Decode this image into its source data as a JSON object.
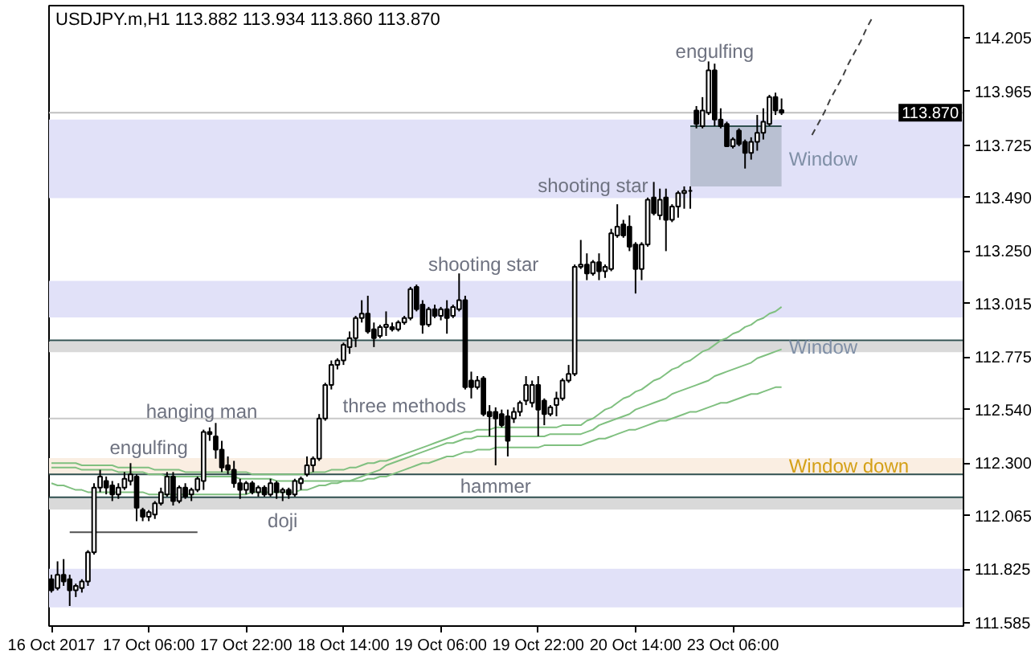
{
  "chart_data": {
    "type": "candlestick",
    "title": "USDJPY.m,H1 113.882 113.934 113.860 113.870",
    "categories": [
      "16 Oct 2017",
      null,
      null,
      null,
      null,
      null,
      null,
      null,
      null,
      null,
      null,
      null,
      null,
      null,
      null,
      null,
      "17 Oct 06:00",
      null,
      null,
      null,
      null,
      null,
      null,
      null,
      null,
      null,
      null,
      null,
      null,
      null,
      null,
      null,
      "17 Oct 22:00",
      null,
      null,
      null,
      null,
      null,
      null,
      null,
      null,
      null,
      null,
      null,
      null,
      null,
      null,
      null,
      "18 Oct 14:00",
      null,
      null,
      null,
      null,
      null,
      null,
      null,
      null,
      null,
      null,
      null,
      null,
      null,
      null,
      null,
      "19 Oct 06:00",
      null,
      null,
      null,
      null,
      null,
      null,
      null,
      null,
      null,
      null,
      null,
      null,
      null,
      null,
      null,
      "19 Oct 22:00",
      null,
      null,
      null,
      null,
      null,
      null,
      null,
      null,
      null,
      null,
      null,
      null,
      null,
      null,
      null,
      "20 Oct 14:00",
      null,
      null,
      null,
      null,
      null,
      null,
      null,
      null,
      null,
      null,
      null,
      null,
      null,
      null,
      null,
      "23 Oct 06:00",
      null,
      null,
      null,
      null,
      null,
      null,
      null,
      null,
      null,
      null,
      null,
      null,
      null,
      null,
      null,
      null,
      null,
      null,
      null,
      null,
      null,
      null,
      null,
      null,
      null,
      null,
      null,
      null,
      null,
      null,
      null,
      null,
      null,
      null,
      null,
      null,
      null
    ],
    "ylim": [
      111.57,
      114.35
    ],
    "yticks": [
      111.585,
      111.825,
      112.065,
      {
        "value": 112.3,
        "label": "112.300"
      },
      {
        "value": 112.54,
        "label": "112.540"
      },
      112.775,
      113.015,
      {
        "value": 113.25,
        "label": "113.250"
      },
      {
        "value": 113.49,
        "label": "113.490"
      },
      113.725,
      113.965,
      114.205
    ],
    "bands": [
      {
        "axis": "y",
        "from": 113.488,
        "to": 113.84,
        "color": "#e1e1f8",
        "label": "Window"
      },
      {
        "axis": "y",
        "from": 112.953,
        "to": 113.117,
        "color": "#e1e1f8"
      },
      {
        "axis": "y",
        "from": 112.797,
        "to": 112.845,
        "color": "#d9d9d9",
        "label": "Window"
      },
      {
        "axis": "y",
        "from": 112.251,
        "to": 112.323,
        "color": "#faeee2",
        "label": "Window down"
      },
      {
        "axis": "y",
        "from": 112.092,
        "to": 112.147,
        "color": "#d9d9d9"
      },
      {
        "axis": "y",
        "from": 111.654,
        "to": 111.827,
        "color": "#e1e1f8"
      }
    ],
    "ref_lines": [
      {
        "axis": "y",
        "value": 113.87,
        "label": "113.870",
        "color": "#c0c0c0"
      },
      {
        "axis": "y",
        "value": 112.85,
        "color": "#2f4f4f"
      },
      {
        "axis": "y",
        "value": 112.5,
        "color": "#c8c8c8"
      },
      {
        "axis": "y",
        "value": 112.25,
        "color": "#2f4f4f"
      },
      {
        "axis": "y",
        "value": 112.147,
        "color": "#2f4f4f"
      }
    ],
    "annotations": [
      "engulfing",
      "shooting star",
      "shooting star",
      "hanging man",
      "engulfing",
      "three methods",
      "doji",
      "hammer"
    ],
    "series": [
      {
        "type": "line",
        "color": "#80c080",
        "values": [
          112.3,
          112.3,
          112.3,
          112.3,
          112.3,
          112.29,
          112.29,
          112.29,
          112.29,
          112.29,
          112.29,
          112.28,
          112.28,
          112.28,
          112.28,
          112.28,
          112.28,
          112.27,
          112.27,
          112.27,
          112.27,
          112.27,
          112.26,
          112.26,
          112.26,
          112.26,
          112.26,
          112.26,
          112.26,
          112.26,
          112.26,
          112.26,
          112.26,
          112.25,
          112.25,
          112.25,
          112.25,
          112.25,
          112.25,
          112.25,
          112.25,
          112.25,
          112.25,
          112.26,
          112.26,
          112.26,
          112.27,
          112.27,
          112.27,
          112.28,
          112.28,
          112.29,
          112.3,
          112.3,
          112.31,
          112.31,
          112.32,
          112.33,
          112.34,
          112.35,
          112.36,
          112.37,
          112.38,
          112.39,
          112.4,
          112.41,
          112.42,
          112.43,
          112.44,
          112.44,
          112.45,
          112.45,
          112.45,
          112.46,
          112.46,
          112.46,
          112.46,
          112.46,
          112.46,
          112.46,
          112.46,
          112.46,
          112.46,
          112.46,
          112.47,
          112.47,
          112.47,
          112.47,
          112.49,
          112.5,
          112.52,
          112.54,
          112.55,
          112.57,
          112.59,
          112.6,
          112.62,
          112.63,
          112.65,
          112.67,
          112.68,
          112.7,
          112.72,
          112.73,
          112.75,
          112.76,
          112.78,
          112.8,
          112.81,
          112.83,
          112.85,
          112.86,
          112.88,
          112.89,
          112.91,
          112.92,
          112.94,
          112.95,
          112.97,
          112.98,
          113.0,
          null,
          null,
          null,
          null,
          null,
          null,
          null,
          null,
          null,
          null,
          null,
          null,
          null,
          null,
          null,
          null,
          null,
          null,
          null,
          null,
          null,
          null,
          null,
          null,
          null,
          null,
          null,
          null,
          null
        ]
      },
      {
        "type": "line",
        "color": "#80c080",
        "values": [
          112.21,
          112.2,
          112.2,
          112.19,
          112.18,
          112.18,
          112.17,
          112.17,
          112.17,
          112.17,
          112.17,
          112.17,
          112.17,
          112.17,
          112.17,
          112.17,
          112.16,
          112.16,
          112.16,
          112.16,
          112.16,
          112.16,
          112.16,
          112.16,
          112.16,
          112.16,
          112.16,
          112.16,
          112.16,
          112.16,
          112.16,
          112.16,
          112.16,
          112.17,
          112.17,
          112.17,
          112.17,
          112.17,
          112.17,
          112.17,
          112.17,
          112.18,
          112.18,
          112.19,
          112.2,
          112.2,
          112.21,
          112.21,
          112.22,
          112.22,
          112.23,
          112.24,
          112.25,
          112.26,
          112.27,
          112.29,
          112.3,
          112.31,
          112.32,
          112.33,
          112.34,
          112.35,
          112.36,
          112.37,
          112.38,
          112.39,
          112.39,
          112.4,
          112.41,
          112.41,
          112.42,
          112.42,
          112.42,
          112.42,
          112.42,
          112.42,
          112.42,
          112.42,
          112.42,
          112.42,
          112.42,
          112.42,
          112.43,
          112.43,
          112.43,
          112.43,
          112.43,
          112.43,
          112.44,
          112.45,
          112.47,
          112.48,
          112.49,
          112.5,
          112.51,
          112.52,
          112.54,
          112.55,
          112.56,
          112.57,
          112.58,
          112.59,
          112.61,
          112.62,
          112.63,
          112.64,
          112.65,
          112.66,
          112.67,
          112.69,
          112.7,
          112.71,
          112.72,
          112.73,
          112.74,
          112.75,
          112.77,
          112.78,
          112.79,
          112.8,
          112.81,
          null,
          null,
          null,
          null,
          null,
          null,
          null,
          null,
          null,
          null,
          null,
          null,
          null,
          null,
          null,
          null,
          null,
          null,
          null,
          null,
          null,
          null,
          null,
          null,
          null,
          null,
          null,
          null,
          null
        ]
      },
      {
        "type": "line",
        "color": "#80c080",
        "values": [
          112.28,
          112.28,
          112.28,
          112.28,
          112.28,
          112.27,
          112.27,
          112.27,
          112.27,
          112.27,
          112.27,
          112.26,
          112.26,
          112.26,
          112.26,
          112.26,
          112.25,
          112.25,
          112.25,
          112.24,
          112.24,
          112.24,
          112.24,
          112.24,
          112.24,
          112.24,
          112.24,
          112.24,
          112.24,
          112.24,
          112.24,
          112.23,
          112.23,
          112.23,
          112.23,
          112.23,
          112.23,
          112.22,
          112.22,
          112.22,
          112.22,
          112.22,
          112.22,
          112.22,
          112.22,
          112.22,
          112.22,
          112.22,
          112.22,
          112.22,
          112.22,
          112.22,
          112.23,
          112.23,
          112.24,
          112.24,
          112.25,
          112.26,
          112.27,
          112.28,
          112.29,
          112.3,
          112.3,
          112.31,
          112.32,
          112.33,
          112.33,
          112.34,
          112.35,
          112.35,
          112.36,
          112.36,
          112.36,
          112.37,
          112.37,
          112.37,
          112.37,
          112.37,
          112.37,
          112.37,
          112.37,
          112.38,
          112.38,
          112.38,
          112.38,
          112.38,
          112.38,
          112.38,
          112.39,
          112.4,
          112.41,
          112.41,
          112.42,
          112.43,
          112.44,
          112.45,
          112.45,
          112.46,
          112.47,
          112.48,
          112.49,
          112.49,
          112.5,
          112.51,
          112.52,
          112.53,
          112.53,
          112.54,
          112.55,
          112.56,
          112.57,
          112.57,
          112.58,
          112.59,
          112.6,
          112.61,
          112.61,
          112.62,
          112.63,
          112.64,
          112.64,
          null,
          null,
          null,
          null,
          null,
          null,
          null,
          null,
          null,
          null,
          null,
          null,
          null,
          null,
          null,
          null,
          null,
          null,
          null,
          null,
          null,
          null,
          null,
          null,
          null,
          null,
          null,
          null,
          null
        ]
      },
      {
        "type": "line",
        "color": "#505050",
        "values": [
          null,
          null,
          null,
          111.99,
          111.99,
          111.99,
          111.99,
          111.99,
          111.99,
          111.99,
          111.99,
          111.99,
          111.99,
          111.99,
          111.99,
          111.99,
          111.99,
          111.99,
          111.99,
          111.99,
          111.99,
          111.99,
          111.99,
          111.99,
          111.99,
          null,
          null,
          null,
          null,
          null,
          null,
          null,
          null,
          null,
          null,
          null,
          null,
          null,
          null,
          null,
          null,
          null,
          null,
          null,
          null,
          null,
          null,
          null,
          null,
          null,
          null,
          null,
          null,
          null,
          null,
          null,
          null,
          null,
          null,
          null,
          null,
          null,
          null,
          null,
          null,
          null,
          null,
          null,
          null,
          null,
          null,
          null,
          null,
          null,
          null,
          null,
          null,
          null,
          null,
          null,
          null,
          null,
          null,
          null,
          null,
          null,
          null,
          null,
          null,
          null,
          null,
          null,
          null,
          null,
          null,
          null,
          null,
          null,
          null,
          null,
          null,
          null,
          null,
          null,
          null,
          null,
          null,
          null,
          null,
          null,
          null,
          null,
          null,
          null,
          null,
          null,
          null,
          null,
          null,
          null,
          null,
          null,
          null,
          null,
          null,
          null,
          null,
          null,
          null,
          null,
          null,
          null,
          null,
          null,
          null,
          null,
          null,
          null,
          null,
          null,
          null,
          null,
          null,
          null,
          null,
          null,
          null,
          null,
          null,
          null
        ]
      },
      {
        "type": "line",
        "color": "#2f4f4f",
        "values": [
          null,
          null,
          null,
          null,
          null,
          null,
          null,
          null,
          null,
          null,
          null,
          null,
          null,
          null,
          null,
          null,
          null,
          null,
          null,
          null,
          null,
          null,
          null,
          null,
          null,
          null,
          null,
          null,
          null,
          null,
          null,
          null,
          null,
          null,
          null,
          null,
          null,
          null,
          null,
          null,
          null,
          null,
          null,
          null,
          null,
          null,
          null,
          null,
          null,
          null,
          null,
          null,
          null,
          null,
          null,
          null,
          null,
          null,
          null,
          null,
          null,
          null,
          null,
          null,
          null,
          null,
          null,
          null,
          null,
          null,
          null,
          null,
          null,
          null,
          null,
          null,
          null,
          null,
          null,
          null,
          null,
          null,
          null,
          null,
          null,
          null,
          null,
          null,
          null,
          null,
          null,
          null,
          null,
          null,
          null,
          null,
          null,
          null,
          null,
          null,
          null,
          null,
          null,
          null,
          null,
          113.81,
          113.81,
          113.81,
          113.81,
          113.81,
          113.81,
          113.81,
          113.81,
          113.81,
          113.81,
          113.81,
          113.81,
          113.81,
          113.81,
          113.81,
          113.81,
          null,
          null,
          null,
          null,
          null,
          null,
          null,
          null,
          null,
          null,
          null,
          null,
          null,
          null,
          null,
          null,
          null,
          null,
          null,
          null,
          null,
          null,
          null,
          null,
          null,
          null,
          null,
          null,
          null
        ],
        "lower": [
          null,
          null,
          null,
          null,
          null,
          null,
          null,
          null,
          null,
          null,
          null,
          null,
          null,
          null,
          null,
          null,
          null,
          null,
          null,
          null,
          null,
          null,
          null,
          null,
          null,
          null,
          null,
          null,
          null,
          null,
          null,
          null,
          null,
          null,
          null,
          null,
          null,
          null,
          null,
          null,
          null,
          null,
          null,
          null,
          null,
          null,
          null,
          null,
          null,
          null,
          null,
          null,
          null,
          null,
          null,
          null,
          null,
          null,
          null,
          null,
          null,
          null,
          null,
          null,
          null,
          null,
          null,
          null,
          null,
          null,
          null,
          null,
          null,
          null,
          null,
          null,
          null,
          null,
          null,
          null,
          null,
          null,
          null,
          null,
          null,
          null,
          null,
          null,
          null,
          null,
          null,
          null,
          null,
          null,
          null,
          null,
          null,
          null,
          null,
          null,
          null,
          null,
          null,
          null,
          null,
          113.54,
          113.54,
          113.54,
          113.54,
          113.54,
          113.54,
          113.54,
          113.54,
          113.54,
          113.54,
          113.54,
          113.54,
          113.54,
          113.54,
          113.54,
          113.54,
          null,
          null,
          null,
          null,
          null,
          null,
          null,
          null,
          null,
          null,
          null,
          null,
          null,
          null,
          null,
          null,
          null,
          null,
          null,
          null,
          null,
          null,
          null,
          null,
          null,
          null,
          null,
          null,
          null
        ],
        "upper": [
          null,
          null,
          null,
          null,
          null,
          null,
          null,
          null,
          null,
          null,
          null,
          null,
          null,
          null,
          null,
          null,
          null,
          null,
          null,
          null,
          null,
          null,
          null,
          null,
          null,
          null,
          null,
          null,
          null,
          null,
          null,
          null,
          null,
          null,
          null,
          null,
          null,
          null,
          null,
          null,
          null,
          null,
          null,
          null,
          null,
          null,
          null,
          null,
          null,
          null,
          null,
          null,
          null,
          null,
          null,
          null,
          null,
          null,
          null,
          null,
          null,
          null,
          null,
          null,
          null,
          null,
          null,
          null,
          null,
          null,
          null,
          null,
          null,
          null,
          null,
          null,
          null,
          null,
          null,
          null,
          null,
          null,
          null,
          null,
          null,
          null,
          null,
          null,
          null,
          null,
          null,
          null,
          null,
          null,
          null,
          null,
          null,
          null,
          null,
          null,
          null,
          null,
          null,
          null,
          null,
          113.81,
          113.81,
          113.81,
          113.81,
          113.81,
          113.81,
          113.81,
          113.81,
          113.81,
          113.81,
          113.81,
          113.81,
          113.81,
          113.81,
          113.81,
          113.81,
          null,
          null,
          null,
          null,
          null,
          null,
          null,
          null,
          null,
          null,
          null,
          null,
          null,
          null,
          null,
          null,
          null,
          null,
          null,
          null,
          null,
          null,
          null,
          null,
          null,
          null,
          null,
          null,
          null
        ]
      },
      {
        "type": "line",
        "color": "#404040",
        "line_style": "dashed",
        "values": [
          null,
          null,
          null,
          null,
          null,
          null,
          null,
          null,
          null,
          null,
          null,
          null,
          null,
          null,
          null,
          null,
          null,
          null,
          null,
          null,
          null,
          null,
          null,
          null,
          null,
          null,
          null,
          null,
          null,
          null,
          null,
          null,
          null,
          null,
          null,
          null,
          null,
          null,
          null,
          null,
          null,
          null,
          null,
          null,
          null,
          null,
          null,
          null,
          null,
          null,
          null,
          null,
          null,
          null,
          null,
          null,
          null,
          null,
          null,
          null,
          null,
          null,
          null,
          null,
          null,
          null,
          null,
          null,
          null,
          null,
          null,
          null,
          null,
          null,
          null,
          null,
          null,
          null,
          null,
          null,
          null,
          null,
          null,
          null,
          null,
          null,
          null,
          null,
          null,
          null,
          null,
          null,
          null,
          null,
          null,
          null,
          null,
          null,
          null,
          null,
          null,
          null,
          null,
          null,
          null,
          null,
          null,
          null,
          null,
          null,
          null,
          null,
          null,
          null,
          null,
          null,
          null,
          null,
          null,
          null,
          null,
          null,
          null,
          null,
          null,
          113.77,
          113.82,
          113.87,
          113.93,
          113.98,
          114.03,
          114.09,
          114.14,
          114.19,
          114.25,
          114.3,
          null,
          null,
          null,
          null,
          null,
          null,
          null,
          null,
          null,
          null,
          null,
          null,
          null,
          null
        ]
      },
      {
        "color": "#000000",
        "ohlc": [
          [
            111.78,
            111.8,
            111.72,
            111.73
          ],
          [
            111.74,
            111.86,
            111.73,
            111.8
          ],
          [
            111.8,
            111.87,
            111.75,
            111.77
          ],
          [
            111.78,
            111.8,
            111.66,
            111.73
          ],
          [
            111.73,
            111.76,
            111.7,
            111.75
          ],
          [
            111.74,
            111.78,
            111.72,
            111.77
          ],
          [
            111.77,
            111.91,
            111.75,
            111.9
          ],
          [
            111.9,
            112.21,
            111.89,
            112.19
          ],
          [
            112.19,
            112.27,
            112.17,
            112.24
          ],
          [
            112.22,
            112.24,
            112.16,
            112.19
          ],
          [
            112.2,
            112.22,
            112.13,
            112.16
          ],
          [
            112.16,
            112.21,
            112.14,
            112.19
          ],
          [
            112.19,
            112.26,
            112.18,
            112.23
          ],
          [
            112.22,
            112.3,
            112.2,
            112.25
          ],
          [
            112.24,
            112.25,
            112.04,
            112.1
          ],
          [
            112.09,
            112.1,
            112.04,
            112.06
          ],
          [
            112.06,
            112.09,
            112.04,
            112.08
          ],
          [
            112.07,
            112.13,
            112.05,
            112.12
          ],
          [
            112.12,
            112.19,
            112.11,
            112.17
          ],
          [
            112.16,
            112.26,
            112.15,
            112.24
          ],
          [
            112.24,
            112.26,
            112.11,
            112.13
          ],
          [
            112.13,
            112.2,
            112.12,
            112.19
          ],
          [
            112.19,
            112.21,
            112.14,
            112.15
          ],
          [
            112.16,
            112.19,
            112.13,
            112.18
          ],
          [
            112.18,
            112.24,
            112.17,
            112.23
          ],
          [
            112.22,
            112.45,
            112.18,
            112.44
          ],
          [
            112.44,
            112.46,
            112.4,
            112.43
          ],
          [
            112.42,
            112.48,
            112.32,
            112.36
          ],
          [
            112.36,
            112.4,
            112.26,
            112.28
          ],
          [
            112.29,
            112.33,
            112.25,
            112.27
          ],
          [
            112.27,
            112.31,
            112.19,
            112.21
          ],
          [
            112.21,
            112.23,
            112.14,
            112.18
          ],
          [
            112.18,
            112.22,
            112.16,
            112.21
          ],
          [
            112.21,
            112.22,
            112.16,
            112.17
          ],
          [
            112.17,
            112.2,
            112.15,
            112.19
          ],
          [
            112.19,
            112.2,
            112.15,
            112.16
          ],
          [
            112.16,
            112.23,
            112.15,
            112.21
          ],
          [
            112.21,
            112.22,
            112.14,
            112.17
          ],
          [
            112.17,
            112.19,
            112.13,
            112.18
          ],
          [
            112.18,
            112.19,
            112.14,
            112.16
          ],
          [
            112.16,
            112.23,
            112.15,
            112.22
          ],
          [
            112.21,
            112.24,
            112.18,
            112.23
          ],
          [
            112.25,
            112.33,
            112.24,
            112.29
          ],
          [
            112.29,
            112.33,
            112.26,
            112.32
          ],
          [
            112.32,
            112.52,
            112.31,
            112.5
          ],
          [
            112.5,
            112.66,
            112.49,
            112.65
          ],
          [
            112.65,
            112.76,
            112.63,
            112.74
          ],
          [
            112.74,
            112.77,
            112.72,
            112.76
          ],
          [
            112.76,
            112.84,
            112.74,
            112.83
          ],
          [
            112.82,
            112.89,
            112.79,
            112.86
          ],
          [
            112.86,
            112.96,
            112.82,
            112.95
          ],
          [
            112.95,
            113.03,
            112.93,
            112.97
          ],
          [
            112.97,
            113.05,
            112.88,
            112.89
          ],
          [
            112.9,
            112.93,
            112.82,
            112.86
          ],
          [
            112.87,
            112.92,
            112.86,
            112.91
          ],
          [
            112.91,
            112.98,
            112.87,
            112.92
          ],
          [
            112.91,
            112.93,
            112.89,
            112.9
          ],
          [
            112.9,
            112.94,
            112.89,
            112.93
          ],
          [
            112.93,
            112.96,
            112.92,
            112.95
          ],
          [
            112.95,
            113.09,
            112.94,
            113.08
          ],
          [
            113.09,
            113.1,
            112.98,
            112.99
          ],
          [
            113.01,
            113.03,
            112.88,
            112.92
          ],
          [
            112.92,
            113.0,
            112.91,
            112.99
          ],
          [
            112.99,
            113.01,
            112.95,
            112.96
          ],
          [
            112.96,
            113.0,
            112.94,
            112.99
          ],
          [
            112.99,
            113.03,
            112.88,
            112.95
          ],
          [
            112.96,
            113.01,
            112.95,
            113.0
          ],
          [
            112.99,
            113.15,
            112.98,
            113.03
          ],
          [
            113.03,
            113.05,
            112.63,
            112.64
          ],
          [
            112.67,
            112.71,
            112.59,
            112.64
          ],
          [
            112.64,
            112.69,
            112.63,
            112.67
          ],
          [
            112.68,
            112.69,
            112.51,
            112.52
          ],
          [
            112.53,
            112.56,
            112.42,
            112.51
          ],
          [
            112.53,
            112.55,
            112.29,
            112.5
          ],
          [
            112.52,
            112.54,
            112.46,
            112.47
          ],
          [
            112.51,
            112.54,
            112.33,
            112.4
          ],
          [
            112.5,
            112.55,
            112.48,
            112.53
          ],
          [
            112.53,
            112.58,
            112.51,
            112.57
          ],
          [
            112.58,
            112.69,
            112.56,
            112.65
          ],
          [
            112.57,
            112.67,
            112.55,
            112.65
          ],
          [
            112.65,
            112.69,
            112.42,
            112.54
          ],
          [
            112.58,
            112.59,
            112.47,
            112.52
          ],
          [
            112.52,
            112.56,
            112.51,
            112.55
          ],
          [
            112.56,
            112.62,
            112.51,
            112.59
          ],
          [
            112.59,
            112.68,
            112.58,
            112.67
          ],
          [
            112.67,
            112.74,
            112.66,
            112.7
          ],
          [
            112.7,
            113.19,
            112.69,
            113.18
          ],
          [
            113.18,
            113.3,
            113.17,
            113.19
          ],
          [
            113.19,
            113.24,
            113.12,
            113.15
          ],
          [
            113.15,
            113.21,
            113.14,
            113.2
          ],
          [
            113.2,
            113.24,
            113.12,
            113.16
          ],
          [
            113.16,
            113.19,
            113.13,
            113.18
          ],
          [
            113.17,
            113.35,
            113.16,
            113.33
          ],
          [
            113.32,
            113.46,
            113.31,
            113.36
          ],
          [
            113.37,
            113.39,
            113.31,
            113.32
          ],
          [
            113.36,
            113.41,
            113.25,
            113.27
          ],
          [
            113.28,
            113.29,
            113.06,
            113.17
          ],
          [
            113.17,
            113.29,
            113.12,
            113.28
          ],
          [
            113.28,
            113.49,
            113.27,
            113.48
          ],
          [
            113.49,
            113.56,
            113.41,
            113.42
          ],
          [
            113.41,
            113.53,
            113.39,
            113.48
          ],
          [
            113.49,
            113.53,
            113.25,
            113.39
          ],
          [
            113.39,
            113.46,
            113.38,
            113.45
          ],
          [
            113.45,
            113.52,
            113.4,
            113.51
          ],
          [
            113.51,
            113.54,
            113.44,
            113.52
          ],
          [
            113.52,
            113.54,
            113.44,
            113.52
          ],
          [
            113.88,
            113.9,
            113.8,
            113.82
          ],
          [
            113.81,
            113.94,
            113.8,
            113.88
          ],
          [
            113.87,
            114.1,
            113.86,
            114.06
          ],
          [
            114.06,
            114.09,
            113.81,
            113.84
          ],
          [
            113.84,
            113.89,
            113.8,
            113.81
          ],
          [
            113.82,
            113.83,
            113.72,
            113.72
          ],
          [
            113.72,
            113.76,
            113.71,
            113.75
          ],
          [
            113.79,
            113.8,
            113.72,
            113.73
          ],
          [
            113.74,
            113.75,
            113.62,
            113.69
          ],
          [
            113.69,
            113.76,
            113.66,
            113.74
          ],
          [
            113.74,
            113.86,
            113.7,
            113.78
          ],
          [
            113.78,
            113.89,
            113.75,
            113.83
          ],
          [
            113.82,
            113.95,
            113.81,
            113.94
          ],
          [
            113.94,
            113.96,
            113.86,
            113.88
          ],
          [
            113.882,
            113.934,
            113.86,
            113.87
          ],
          null,
          null,
          null,
          null,
          null,
          null,
          null,
          null,
          null,
          null,
          null,
          null,
          null,
          null,
          null,
          null,
          null,
          null,
          null,
          null,
          null,
          null,
          null,
          null,
          null,
          null,
          null,
          null,
          null
        ]
      }
    ]
  }
}
